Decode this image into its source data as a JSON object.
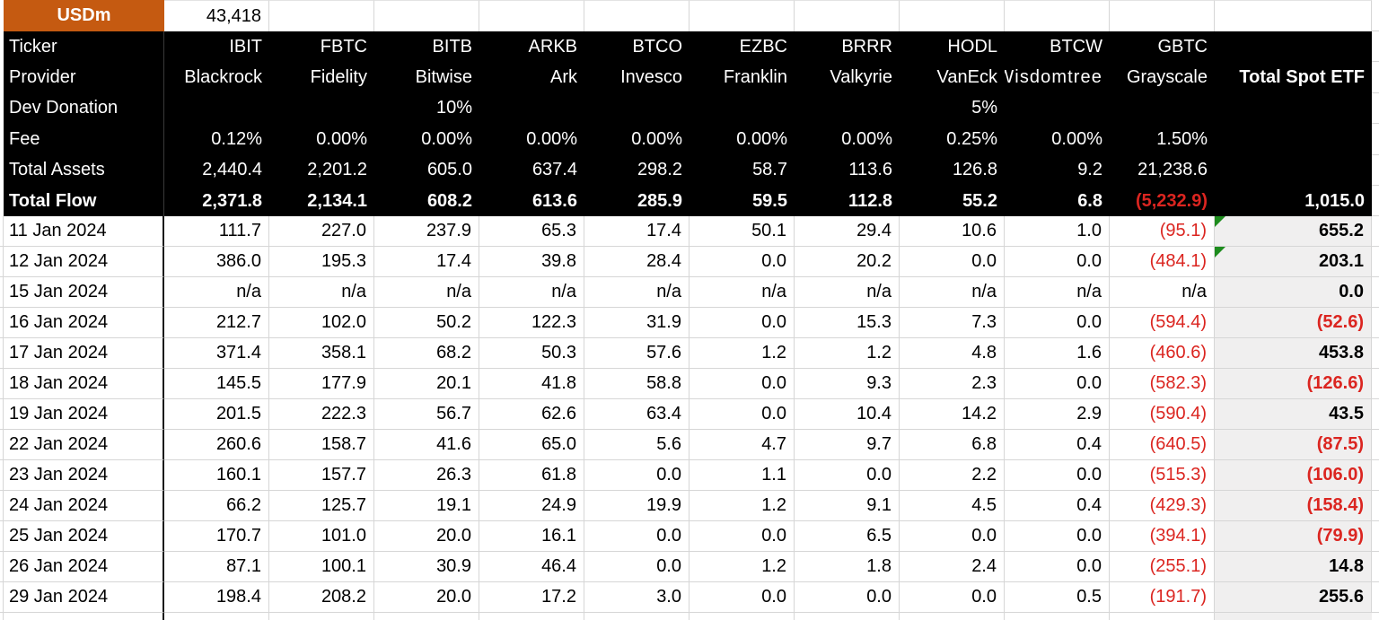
{
  "top": {
    "units_label": "USDm",
    "total_flow_sum": "43,418"
  },
  "header_labels": [
    "Ticker",
    "Provider",
    "Dev Donation",
    "Fee",
    "Total Assets",
    "Total Flow"
  ],
  "total_column": {
    "header": "Total Spot ETF",
    "total_flow": "1,015.0"
  },
  "columns": [
    {
      "ticker": "IBIT",
      "provider": "Blackrock",
      "dev_donation": "",
      "fee": "0.12%",
      "total_assets": "2,440.4",
      "total_flow": "2,371.8"
    },
    {
      "ticker": "FBTC",
      "provider": "Fidelity",
      "dev_donation": "",
      "fee": "0.00%",
      "total_assets": "2,201.2",
      "total_flow": "2,134.1"
    },
    {
      "ticker": "BITB",
      "provider": "Bitwise",
      "dev_donation": "10%",
      "fee": "0.00%",
      "total_assets": "605.0",
      "total_flow": "608.2"
    },
    {
      "ticker": "ARKB",
      "provider": "Ark",
      "dev_donation": "",
      "fee": "0.00%",
      "total_assets": "637.4",
      "total_flow": "613.6"
    },
    {
      "ticker": "BTCO",
      "provider": "Invesco",
      "dev_donation": "",
      "fee": "0.00%",
      "total_assets": "298.2",
      "total_flow": "285.9"
    },
    {
      "ticker": "EZBC",
      "provider": "Franklin",
      "dev_donation": "",
      "fee": "0.00%",
      "total_assets": "58.7",
      "total_flow": "59.5"
    },
    {
      "ticker": "BRRR",
      "provider": "Valkyrie",
      "dev_donation": "",
      "fee": "0.00%",
      "total_assets": "113.6",
      "total_flow": "112.8"
    },
    {
      "ticker": "HODL",
      "provider": "VanEck",
      "dev_donation": "5%",
      "fee": "0.25%",
      "total_assets": "126.8",
      "total_flow": "55.2"
    },
    {
      "ticker": "BTCW",
      "provider": "Wisdomtree",
      "dev_donation": "",
      "fee": "0.00%",
      "total_assets": "9.2",
      "total_flow": "6.8"
    },
    {
      "ticker": "GBTC",
      "provider": "Grayscale",
      "dev_donation": "",
      "fee": "1.50%",
      "total_assets": "21,238.6",
      "total_flow": "(5,232.9)"
    }
  ],
  "rows": [
    {
      "date": "11 Jan 2024",
      "values": [
        "111.7",
        "227.0",
        "237.9",
        "65.3",
        "17.4",
        "50.1",
        "29.4",
        "10.6",
        "1.0",
        "(95.1)"
      ],
      "total": "655.2",
      "flag": true
    },
    {
      "date": "12 Jan 2024",
      "values": [
        "386.0",
        "195.3",
        "17.4",
        "39.8",
        "28.4",
        "0.0",
        "20.2",
        "0.0",
        "0.0",
        "(484.1)"
      ],
      "total": "203.1",
      "flag": true
    },
    {
      "date": "15 Jan 2024",
      "values": [
        "n/a",
        "n/a",
        "n/a",
        "n/a",
        "n/a",
        "n/a",
        "n/a",
        "n/a",
        "n/a",
        "n/a"
      ],
      "total": "0.0",
      "flag": false
    },
    {
      "date": "16 Jan 2024",
      "values": [
        "212.7",
        "102.0",
        "50.2",
        "122.3",
        "31.9",
        "0.0",
        "15.3",
        "7.3",
        "0.0",
        "(594.4)"
      ],
      "total": "(52.6)",
      "flag": false
    },
    {
      "date": "17 Jan 2024",
      "values": [
        "371.4",
        "358.1",
        "68.2",
        "50.3",
        "57.6",
        "1.2",
        "1.2",
        "4.8",
        "1.6",
        "(460.6)"
      ],
      "total": "453.8",
      "flag": false
    },
    {
      "date": "18 Jan 2024",
      "values": [
        "145.5",
        "177.9",
        "20.1",
        "41.8",
        "58.8",
        "0.0",
        "9.3",
        "2.3",
        "0.0",
        "(582.3)"
      ],
      "total": "(126.6)",
      "flag": false
    },
    {
      "date": "19 Jan 2024",
      "values": [
        "201.5",
        "222.3",
        "56.7",
        "62.6",
        "63.4",
        "0.0",
        "10.4",
        "14.2",
        "2.9",
        "(590.4)"
      ],
      "total": "43.5",
      "flag": false
    },
    {
      "date": "22 Jan 2024",
      "values": [
        "260.6",
        "158.7",
        "41.6",
        "65.0",
        "5.6",
        "4.7",
        "9.7",
        "6.8",
        "0.4",
        "(640.5)"
      ],
      "total": "(87.5)",
      "flag": false
    },
    {
      "date": "23 Jan 2024",
      "values": [
        "160.1",
        "157.7",
        "26.3",
        "61.8",
        "0.0",
        "1.1",
        "0.0",
        "2.2",
        "0.0",
        "(515.3)"
      ],
      "total": "(106.0)",
      "flag": false
    },
    {
      "date": "24 Jan 2024",
      "values": [
        "66.2",
        "125.7",
        "19.1",
        "24.9",
        "19.9",
        "1.2",
        "9.1",
        "4.5",
        "0.4",
        "(429.3)"
      ],
      "total": "(158.4)",
      "flag": false
    },
    {
      "date": "25 Jan 2024",
      "values": [
        "170.7",
        "101.0",
        "20.0",
        "16.1",
        "0.0",
        "0.0",
        "6.5",
        "0.0",
        "0.0",
        "(394.1)"
      ],
      "total": "(79.9)",
      "flag": false
    },
    {
      "date": "26 Jan 2024",
      "values": [
        "87.1",
        "100.1",
        "30.9",
        "46.4",
        "0.0",
        "1.2",
        "1.8",
        "2.4",
        "0.0",
        "(255.1)"
      ],
      "total": "14.8",
      "flag": false
    },
    {
      "date": "29 Jan 2024",
      "values": [
        "198.4",
        "208.2",
        "20.0",
        "17.2",
        "3.0",
        "0.0",
        "0.0",
        "0.0",
        "0.5",
        "(191.7)"
      ],
      "total": "255.6",
      "flag": false
    }
  ],
  "colors": {
    "accent_orange": "#C55A11",
    "header_bg": "#000000",
    "header_text": "#FFFFFF",
    "negative_red": "#DB2520",
    "negative_red_on_dark": "#FF2A1A",
    "total_column_bg": "#F0EFEF",
    "gridline": "#D6D6D6",
    "error_flag_green": "#1E8C1E"
  }
}
